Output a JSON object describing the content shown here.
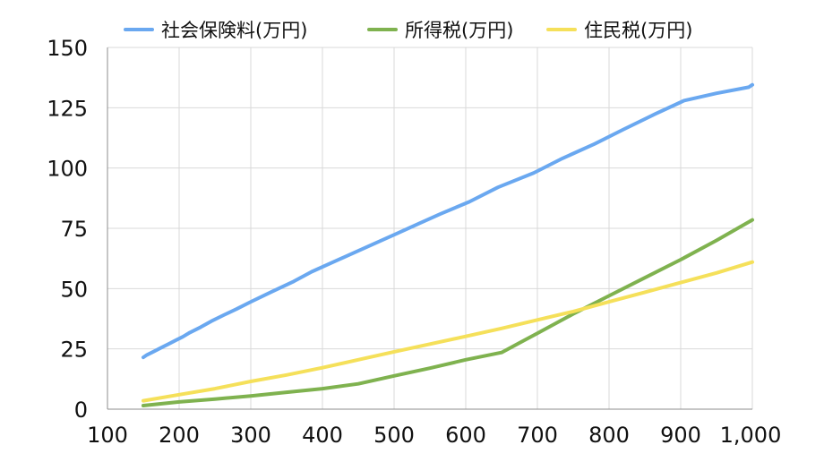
{
  "chart_data": {
    "type": "line",
    "title": "",
    "xlabel": "",
    "ylabel": "",
    "xlim": [
      100,
      1000
    ],
    "ylim": [
      0,
      150
    ],
    "x_ticks": [
      100,
      200,
      300,
      400,
      500,
      600,
      700,
      800,
      900,
      1000
    ],
    "x_tick_labels": [
      "100",
      "200",
      "300",
      "400",
      "500",
      "600",
      "700",
      "800",
      "900",
      "1,000"
    ],
    "y_ticks": [
      0,
      25,
      50,
      75,
      100,
      125,
      150
    ],
    "y_tick_labels": [
      "0",
      "25",
      "50",
      "75",
      "100",
      "125",
      "150"
    ],
    "grid": true,
    "legend": "top",
    "series": [
      {
        "name": "社会保険料(万円)",
        "color": "#6aa8f0",
        "x": [
          150,
          155,
          165,
          175,
          185,
          195,
          205,
          215,
          230,
          245,
          262,
          280,
          300,
          330,
          360,
          385,
          415,
          445,
          475,
          505,
          535,
          565,
          605,
          645,
          695,
          735,
          780,
          820,
          865,
          905,
          950,
          995,
          1000
        ],
        "y": [
          21.5,
          22.5,
          24,
          25.5,
          27,
          28.5,
          30,
          31.8,
          34,
          36.5,
          39,
          41.5,
          44.5,
          48.8,
          53,
          57,
          61,
          65,
          69,
          73,
          77,
          81,
          86,
          92,
          98,
          104,
          110,
          116,
          122.5,
          128,
          131,
          133.5,
          134.5
        ]
      },
      {
        "name": "所得税(万円)",
        "color": "#7fb24f",
        "x": [
          150,
          200,
          250,
          300,
          350,
          400,
          450,
          500,
          550,
          600,
          650,
          700,
          750,
          800,
          850,
          900,
          950,
          1000
        ],
        "y": [
          1.5,
          3,
          4.2,
          5.5,
          7,
          8.5,
          10.5,
          13.8,
          17,
          20.5,
          23.5,
          31.5,
          39.5,
          47,
          54.5,
          62,
          70,
          78.5
        ]
      },
      {
        "name": "住民税(万円)",
        "color": "#f5e05a",
        "x": [
          150,
          200,
          250,
          300,
          350,
          400,
          450,
          500,
          550,
          600,
          650,
          700,
          750,
          800,
          850,
          900,
          950,
          1000
        ],
        "y": [
          3.5,
          6,
          8.5,
          11.5,
          14.2,
          17.2,
          20.5,
          23.8,
          27,
          30.2,
          33.5,
          37,
          40.5,
          44.5,
          48.5,
          52.5,
          56.5,
          61
        ]
      }
    ]
  }
}
